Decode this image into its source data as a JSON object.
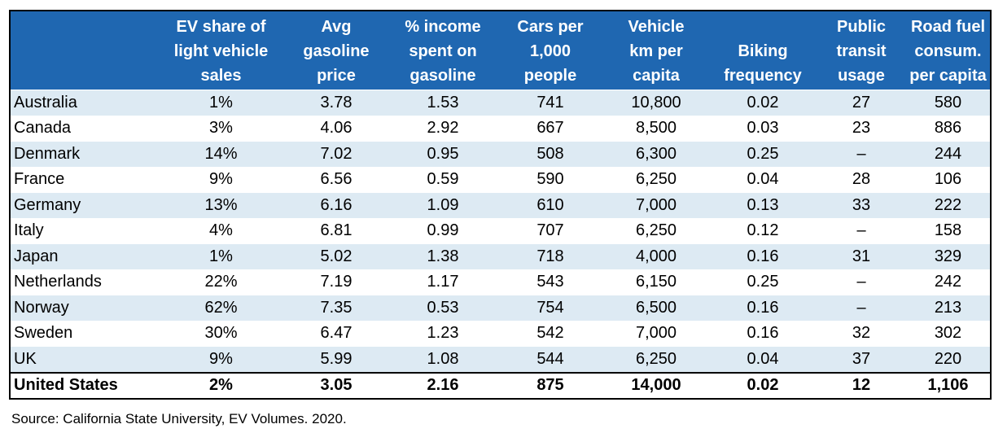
{
  "chart_data": {
    "type": "table",
    "columns": [
      "",
      "EV share of\nlight vehicle\nsales",
      "Avg\ngasoline\nprice",
      "% income\nspent on\ngasoline",
      "Cars per\n1,000\npeople",
      "Vehicle\nkm per\ncapita",
      "Biking\nfrequency",
      "Public\ntransit\nusage",
      "Road fuel\nconsum.\nper capita"
    ],
    "rows": [
      [
        "Australia",
        "1%",
        "3.78",
        "1.53",
        "741",
        "10,800",
        "0.02",
        "27",
        "580"
      ],
      [
        "Canada",
        "3%",
        "4.06",
        "2.92",
        "667",
        "8,500",
        "0.03",
        "23",
        "886"
      ],
      [
        "Denmark",
        "14%",
        "7.02",
        "0.95",
        "508",
        "6,300",
        "0.25",
        "–",
        "244"
      ],
      [
        "France",
        "9%",
        "6.56",
        "0.59",
        "590",
        "6,250",
        "0.04",
        "28",
        "106"
      ],
      [
        "Germany",
        "13%",
        "6.16",
        "1.09",
        "610",
        "7,000",
        "0.13",
        "33",
        "222"
      ],
      [
        "Italy",
        "4%",
        "6.81",
        "0.99",
        "707",
        "6,250",
        "0.12",
        "–",
        "158"
      ],
      [
        "Japan",
        "1%",
        "5.02",
        "1.38",
        "718",
        "4,000",
        "0.16",
        "31",
        "329"
      ],
      [
        "Netherlands",
        "22%",
        "7.19",
        "1.17",
        "543",
        "6,150",
        "0.25",
        "–",
        "242"
      ],
      [
        "Norway",
        "62%",
        "7.35",
        "0.53",
        "754",
        "6,500",
        "0.16",
        "–",
        "213"
      ],
      [
        "Sweden",
        "30%",
        "6.47",
        "1.23",
        "542",
        "7,000",
        "0.16",
        "32",
        "302"
      ],
      [
        "UK",
        "9%",
        "5.99",
        "1.08",
        "544",
        "6,250",
        "0.04",
        "37",
        "220"
      ]
    ],
    "total_row": [
      "United States",
      "2%",
      "3.05",
      "2.16",
      "875",
      "14,000",
      "0.02",
      "12",
      "1,106"
    ],
    "source": "Source: California State University, EV Volumes. 2020."
  },
  "colors": {
    "header_bg": "#1f67b1",
    "header_text": "#ffffff",
    "shaded_row": "#ddeaf3",
    "plain_row": "#ffffff"
  }
}
